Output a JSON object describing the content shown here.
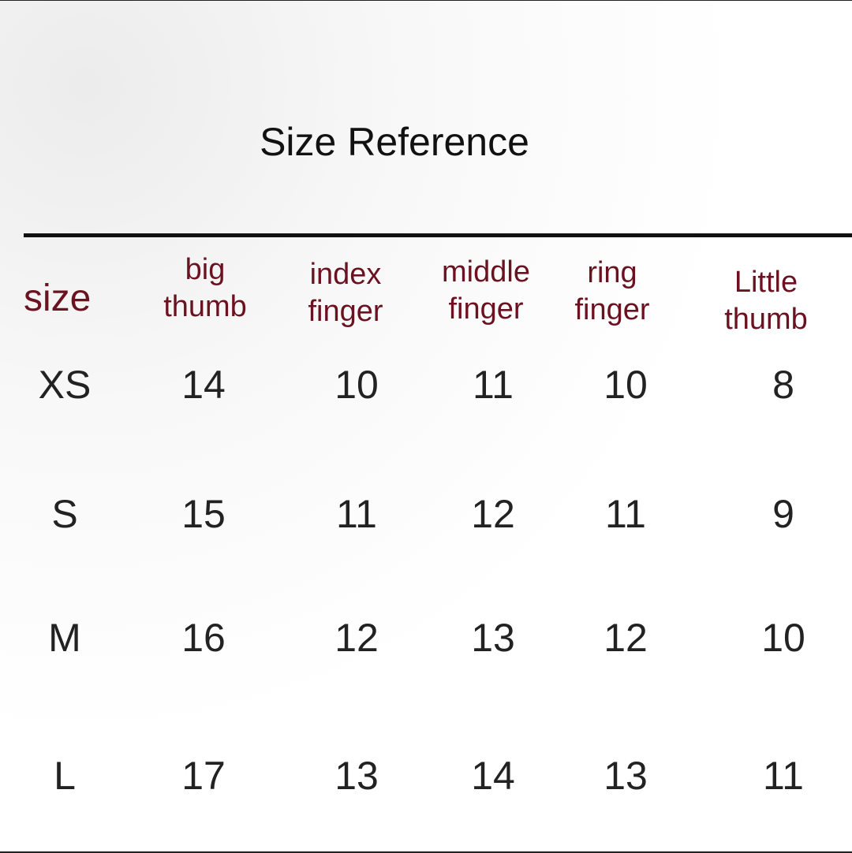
{
  "title": "Size Reference",
  "table": {
    "size_header": "size",
    "columns": [
      {
        "line1": "big",
        "line2": "thumb"
      },
      {
        "line1": "index",
        "line2": "finger"
      },
      {
        "line1": "middle",
        "line2": "finger"
      },
      {
        "line1": "ring",
        "line2": "finger"
      },
      {
        "line1": "Little",
        "line2": "thumb"
      }
    ],
    "rows": [
      {
        "size": "XS",
        "values": [
          "14",
          "10",
          "11",
          "10",
          "8"
        ]
      },
      {
        "size": "S",
        "values": [
          "15",
          "11",
          "12",
          "11",
          "9"
        ]
      },
      {
        "size": "M",
        "values": [
          "16",
          "12",
          "13",
          "12",
          "10"
        ]
      },
      {
        "size": "L",
        "values": [
          "17",
          "13",
          "14",
          "13",
          "11"
        ]
      }
    ],
    "header_color": "#6b1220"
  }
}
